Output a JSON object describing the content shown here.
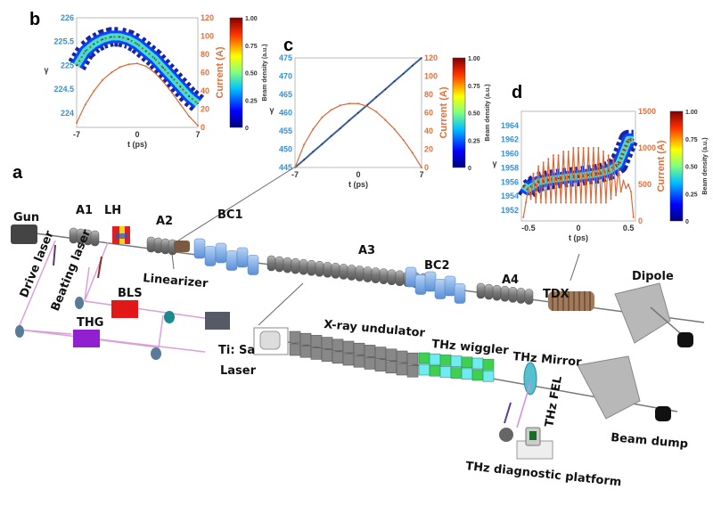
{
  "panels": {
    "a": "a",
    "b": "b",
    "c": "c",
    "d": "d"
  },
  "beamline": {
    "gun": "Gun",
    "a1": "A1",
    "lh": "LH",
    "a2": "A2",
    "linearizer": "Linearizer",
    "bc1": "BC1",
    "a3": "A3",
    "bc2": "BC2",
    "a4": "A4",
    "tdx": "TDX",
    "dipole": "Dipole",
    "drive_laser": "Drive laser",
    "beating_laser": "Beating laser",
    "bls": "BLS",
    "thg": "THG",
    "tisa_line1": "Ti: Sa",
    "tisa_line2": "Laser",
    "xray_undulator": "X-ray undulator",
    "thz_wiggler": "THz wiggler",
    "thz_mirror": "THz Mirror",
    "thz_fel": "THz FEL",
    "beam_dump": "Beam dump",
    "thz_diag": "THz diagnostic platform"
  },
  "colors": {
    "gamma_axis": "#3a8fd0",
    "current_axis": "#e0703a",
    "current_line": "#d9693a",
    "centroid_line": "#3a5f9e"
  },
  "chart_data": [
    {
      "id": "b",
      "type": "heatmap+line",
      "xlabel": "t (ps)",
      "ylabel": "γ",
      "y2label": "Current (A)",
      "colorbar_label": "Beam density (a.u.)",
      "xlim": [
        -7,
        7
      ],
      "ylim": [
        223.7,
        226
      ],
      "y2lim": [
        0,
        120
      ],
      "xticks": [
        "-7",
        "0",
        "7"
      ],
      "xtick_values": [
        -7,
        0,
        7
      ],
      "yticks": [
        "224",
        "224.5",
        "225",
        "225.5",
        "226"
      ],
      "ytick_values": [
        224,
        224.5,
        225,
        225.5,
        226
      ],
      "y2ticks": [
        "0",
        "20",
        "40",
        "60",
        "80",
        "100",
        "120"
      ],
      "y2tick_values": [
        0,
        20,
        40,
        60,
        80,
        100,
        120
      ],
      "cbticks": [
        "0",
        "0.25",
        "0.50",
        "0.75",
        "1.00"
      ],
      "t": [
        -7,
        -6,
        -5,
        -4,
        -3,
        -2,
        -1,
        0,
        1,
        2,
        3,
        4,
        5,
        6,
        7
      ],
      "gamma": [
        225.0,
        225.3,
        225.45,
        225.55,
        225.6,
        225.6,
        225.55,
        225.45,
        225.3,
        225.15,
        224.95,
        224.75,
        224.55,
        224.35,
        224.2
      ],
      "current": [
        5,
        25,
        40,
        52,
        60,
        66,
        69,
        70,
        67,
        60,
        50,
        38,
        25,
        12,
        2
      ],
      "modulated": true
    },
    {
      "id": "c",
      "type": "line",
      "xlabel": "t (ps)",
      "ylabel": "γ",
      "y2label": "Current (A)",
      "colorbar_label": "Beam density (a.u.)",
      "xlim": [
        -7,
        7
      ],
      "ylim": [
        445,
        475
      ],
      "y2lim": [
        0,
        120
      ],
      "xticks": [
        "-7",
        "0",
        "7"
      ],
      "xtick_values": [
        -7,
        0,
        7
      ],
      "yticks": [
        "445",
        "450",
        "455",
        "460",
        "465",
        "470",
        "475"
      ],
      "ytick_values": [
        445,
        450,
        455,
        460,
        465,
        470,
        475
      ],
      "y2ticks": [
        "0",
        "20",
        "40",
        "60",
        "80",
        "100",
        "120"
      ],
      "y2tick_values": [
        0,
        20,
        40,
        60,
        80,
        100,
        120
      ],
      "cbticks": [
        "0",
        "0.25",
        "0.50",
        "0.75",
        "1.00"
      ],
      "t": [
        -7,
        -6,
        -5,
        -4,
        -3,
        -2,
        -1,
        0,
        1,
        2,
        3,
        4,
        5,
        6,
        7
      ],
      "gamma": [
        445,
        447.1,
        449.3,
        451.4,
        453.6,
        455.7,
        457.9,
        460,
        462.1,
        464.3,
        466.4,
        468.6,
        470.7,
        472.9,
        475
      ],
      "current": [
        0,
        25,
        42,
        55,
        63,
        68,
        70,
        70,
        67,
        61,
        52,
        42,
        30,
        16,
        0
      ],
      "modulated": false
    },
    {
      "id": "d",
      "type": "heatmap+line",
      "xlabel": "t (ps)",
      "ylabel": "γ",
      "y2label": "Current (A)",
      "colorbar_label": "Beam density (a.u.)",
      "xlim": [
        -0.57,
        0.57
      ],
      "ylim": [
        1950.5,
        1966
      ],
      "y2lim": [
        0,
        1500
      ],
      "xticks": [
        "-0.5",
        "0",
        "0.5"
      ],
      "xtick_values": [
        -0.5,
        0,
        0.5
      ],
      "yticks": [
        "1952",
        "1954",
        "1956",
        "1958",
        "1960",
        "1962",
        "1964"
      ],
      "ytick_values": [
        1952,
        1954,
        1956,
        1958,
        1960,
        1962,
        1964
      ],
      "y2ticks": [
        "0",
        "500",
        "1000",
        "1500"
      ],
      "y2tick_values": [
        0,
        500,
        1000,
        1500
      ],
      "cbticks": [
        "0",
        "0.25",
        "0.50",
        "0.75",
        "1.00"
      ],
      "t": [
        -0.55,
        -0.5,
        -0.4,
        -0.3,
        -0.2,
        -0.1,
        0,
        0.1,
        0.2,
        0.3,
        0.4,
        0.5,
        0.55
      ],
      "gamma": [
        1955.5,
        1955,
        1956,
        1956.3,
        1956.5,
        1956.7,
        1956.8,
        1957,
        1957.2,
        1957.6,
        1958.5,
        1962,
        1962
      ],
      "current_t": [
        -0.55,
        -0.525,
        -0.5,
        -0.475,
        -0.45,
        -0.425,
        -0.4,
        -0.375,
        -0.35,
        -0.325,
        -0.3,
        -0.275,
        -0.25,
        -0.225,
        -0.2,
        -0.175,
        -0.15,
        -0.125,
        -0.1,
        -0.075,
        -0.05,
        -0.025,
        0,
        0.025,
        0.05,
        0.075,
        0.1,
        0.125,
        0.15,
        0.175,
        0.2,
        0.225,
        0.25,
        0.275,
        0.3,
        0.325,
        0.35,
        0.375,
        0.4,
        0.425,
        0.45,
        0.475,
        0.5,
        0.525,
        0.55
      ],
      "current": [
        50,
        250,
        450,
        300,
        650,
        250,
        750,
        250,
        800,
        250,
        850,
        250,
        900,
        250,
        900,
        250,
        950,
        250,
        950,
        250,
        1000,
        250,
        1000,
        250,
        1000,
        250,
        1000,
        250,
        1000,
        250,
        1000,
        250,
        950,
        250,
        900,
        300,
        850,
        350,
        700,
        400,
        550,
        450,
        500,
        400,
        50
      ],
      "modulated": true
    }
  ]
}
